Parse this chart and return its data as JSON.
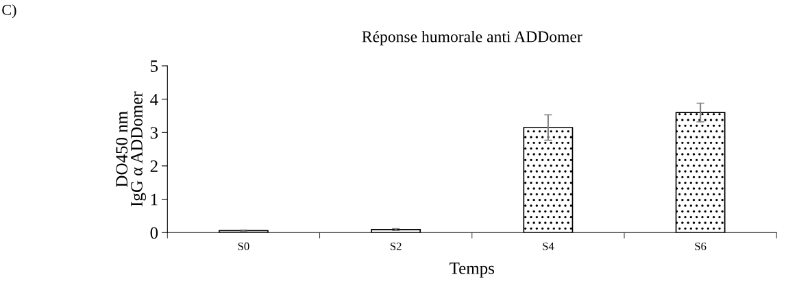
{
  "chart_data": {
    "type": "bar",
    "title": "Réponse humorale anti ADDomer",
    "xlabel": "Temps",
    "ylabel": "DO450 nm\nIgG α ADDomer",
    "annotations": [
      "C)"
    ],
    "categories": [
      "S0",
      "S2",
      "S4",
      "S6"
    ],
    "values": [
      0.06,
      0.09,
      3.15,
      3.6
    ],
    "errors": [
      0.02,
      0.03,
      0.38,
      0.28
    ],
    "ylim": [
      0,
      5
    ],
    "yticks": [
      0,
      1,
      2,
      3,
      4,
      5
    ],
    "grid": false,
    "legend": false
  }
}
